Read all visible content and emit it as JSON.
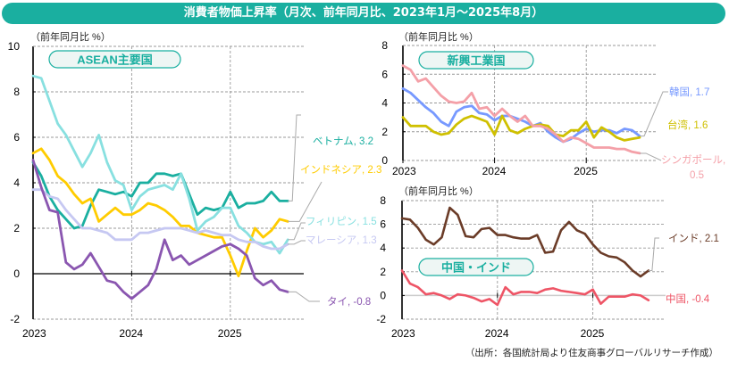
{
  "title": "消費者物価上昇率（月次、前年同月比、2023年1月～2025年8月）",
  "source": "（出所：各国統計局より住友商事グローバルリサーチ作成）",
  "colors": {
    "title_bg": "#1aafa0",
    "pill_border": "#1aafa0",
    "pill_bg": "#eef6f4",
    "pill_text": "#1aafa0"
  },
  "chart_data": [
    {
      "id": "asean",
      "type": "line",
      "title": "ASEAN主要国",
      "ylabel": "（前年同月比 %）",
      "ylim": [
        -2,
        10
      ],
      "yticks": [
        -2,
        0,
        2,
        4,
        6,
        8,
        10
      ],
      "xticks": [
        "2023",
        "2024",
        "2025"
      ],
      "x_start": "2023-01",
      "x_end": "2025-08",
      "grid": true,
      "series": [
        {
          "name": "ベトナム",
          "label": "ベトナム, 3.2",
          "color": "#1aafa0",
          "last": 3.2,
          "values": [
            4.9,
            4.3,
            3.4,
            2.8,
            2.4,
            2.0,
            2.1,
            3.0,
            3.7,
            3.6,
            3.5,
            3.6,
            3.4,
            4.0,
            4.0,
            4.4,
            4.4,
            4.3,
            4.4,
            3.5,
            2.6,
            2.9,
            2.8,
            2.9,
            3.6,
            2.9,
            3.1,
            3.1,
            3.2,
            3.6,
            3.2,
            3.2
          ]
        },
        {
          "name": "インドネシア",
          "label": "インドネシア, 2.3",
          "color": "#ffcc00",
          "last": 2.3,
          "values": [
            5.3,
            5.5,
            5.0,
            4.3,
            4.0,
            3.5,
            3.1,
            3.3,
            2.3,
            2.6,
            2.9,
            2.6,
            2.6,
            2.8,
            3.1,
            3.0,
            2.8,
            2.5,
            2.1,
            2.1,
            1.8,
            1.7,
            1.6,
            1.6,
            0.8,
            -0.1,
            1.0,
            2.0,
            1.6,
            1.9,
            2.4,
            2.3
          ]
        },
        {
          "name": "フィリピン",
          "label": "フィリピン, 1.5",
          "color": "#88e0e0",
          "last": 1.5,
          "values": [
            8.7,
            8.6,
            7.6,
            6.6,
            6.1,
            5.4,
            4.7,
            5.3,
            6.1,
            4.9,
            4.1,
            3.9,
            2.8,
            3.4,
            3.7,
            3.8,
            3.9,
            3.7,
            4.4,
            3.3,
            1.9,
            2.3,
            2.5,
            2.9,
            2.9,
            2.1,
            1.8,
            1.4,
            1.3,
            1.4,
            0.9,
            1.5
          ]
        },
        {
          "name": "マレーシア",
          "label": "マレーシア, 1.3",
          "color": "#c6c8f2",
          "last": 1.3,
          "values": [
            3.7,
            3.7,
            3.4,
            3.3,
            2.8,
            2.4,
            2.0,
            2.0,
            1.9,
            1.8,
            1.5,
            1.5,
            1.5,
            1.8,
            1.8,
            1.9,
            2.0,
            2.0,
            2.0,
            1.9,
            1.8,
            1.9,
            1.8,
            1.7,
            1.7,
            1.5,
            1.4,
            1.4,
            1.2,
            1.1,
            1.1,
            1.3
          ]
        },
        {
          "name": "タイ",
          "label": "タイ, -0.8",
          "color": "#8a56b0",
          "last": -0.8,
          "values": [
            5.0,
            3.8,
            2.8,
            2.7,
            0.5,
            0.2,
            0.4,
            0.9,
            0.3,
            -0.3,
            -0.4,
            -0.8,
            -1.1,
            -0.8,
            -0.5,
            0.2,
            1.5,
            0.6,
            0.8,
            0.4,
            0.6,
            0.8,
            1.0,
            1.2,
            1.3,
            1.1,
            0.8,
            -0.2,
            -0.5,
            -0.3,
            -0.7,
            -0.8
          ]
        }
      ]
    },
    {
      "id": "nies",
      "type": "line",
      "title": "新興工業国",
      "ylabel": "（前年同月比 %）",
      "ylim": [
        0,
        8
      ],
      "yticks": [
        0,
        2,
        4,
        6,
        8
      ],
      "xticks": [
        "2023",
        "2024",
        "2025"
      ],
      "x_start": "2023-01",
      "x_end": "2025-08",
      "grid": true,
      "series": [
        {
          "name": "韓国",
          "label": "韓国, 1.7",
          "color": "#7799ff",
          "last": 1.7,
          "values": [
            5.0,
            4.7,
            4.2,
            3.7,
            3.3,
            2.7,
            2.4,
            3.4,
            3.7,
            3.8,
            3.3,
            3.2,
            2.8,
            3.1,
            3.1,
            2.9,
            2.7,
            2.4,
            2.6,
            2.0,
            1.6,
            1.3,
            1.5,
            1.9,
            2.2,
            2.0,
            2.1,
            2.1,
            1.9,
            2.2,
            2.1,
            1.7
          ]
        },
        {
          "name": "台湾",
          "label": "台湾, 1.6",
          "color": "#cfc000",
          "last": 1.6,
          "values": [
            3.0,
            2.4,
            2.4,
            2.4,
            2.0,
            1.8,
            1.9,
            2.5,
            2.9,
            3.1,
            2.9,
            2.7,
            1.8,
            3.1,
            2.1,
            1.9,
            2.2,
            2.4,
            2.5,
            2.4,
            1.8,
            1.7,
            2.1,
            2.1,
            2.7,
            1.6,
            2.3,
            2.0,
            1.6,
            1.4,
            1.5,
            1.6
          ]
        },
        {
          "name": "シンガポール",
          "label": "シンガポール, 0.5",
          "label_line1": "シンガポール,",
          "label_line2": "0.5",
          "color": "#f4a0a8",
          "last": 0.5,
          "values": [
            6.6,
            6.3,
            5.5,
            5.7,
            5.1,
            4.5,
            4.1,
            4.0,
            4.1,
            4.7,
            3.6,
            3.7,
            3.1,
            3.6,
            3.1,
            2.7,
            3.1,
            2.4,
            2.4,
            2.2,
            1.8,
            1.3,
            1.6,
            1.5,
            1.2,
            0.9,
            0.9,
            0.9,
            0.8,
            0.8,
            0.6,
            0.5
          ]
        }
      ]
    },
    {
      "id": "china_india",
      "type": "line",
      "title": "中国・インド",
      "ylabel": "（前年同月比 %）",
      "ylim": [
        -2,
        8
      ],
      "yticks": [
        -2,
        0,
        2,
        4,
        6,
        8
      ],
      "xticks": [
        "2023",
        "2024",
        "2025"
      ],
      "x_start": "2023-01",
      "x_end": "2025-08",
      "grid": true,
      "series": [
        {
          "name": "インド",
          "label": "インド, 2.1",
          "color": "#6b3c28",
          "last": 2.1,
          "values": [
            6.5,
            6.4,
            5.7,
            4.7,
            4.3,
            4.9,
            7.4,
            6.8,
            5.0,
            4.9,
            5.6,
            5.7,
            5.1,
            5.1,
            4.9,
            4.8,
            4.8,
            5.1,
            3.6,
            3.7,
            5.5,
            6.2,
            5.5,
            5.2,
            4.3,
            3.6,
            3.3,
            3.2,
            2.8,
            2.1,
            1.6,
            2.1
          ]
        },
        {
          "name": "中国",
          "label": "中国, -0.4",
          "color": "#ee5566",
          "last": -0.4,
          "values": [
            2.1,
            1.0,
            0.7,
            0.1,
            0.2,
            0.0,
            -0.3,
            0.1,
            0.0,
            -0.2,
            -0.5,
            -0.3,
            -0.8,
            0.7,
            0.1,
            0.3,
            0.3,
            0.2,
            0.5,
            0.6,
            0.4,
            0.3,
            0.2,
            0.1,
            0.5,
            -0.7,
            -0.1,
            -0.1,
            -0.1,
            0.1,
            0.0,
            -0.4
          ]
        }
      ]
    }
  ]
}
